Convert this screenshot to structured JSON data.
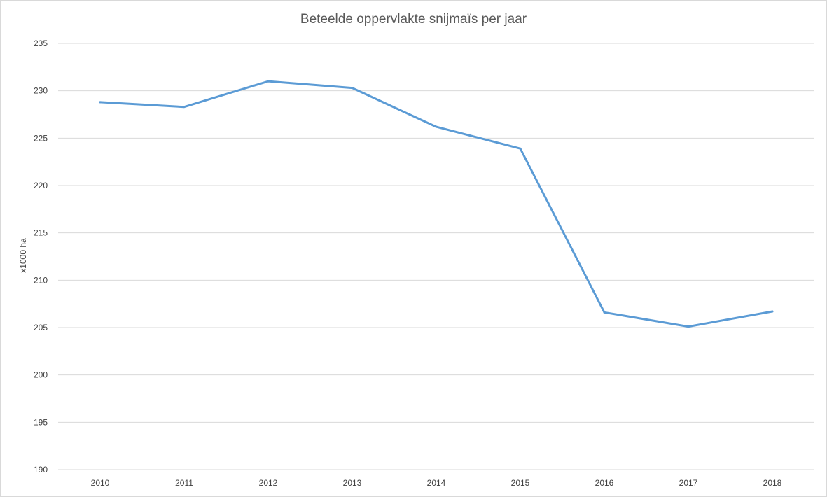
{
  "chart_data": {
    "type": "line",
    "title": "Beteelde  oppervlakte snijmaïs per jaar",
    "xlabel": "",
    "ylabel": "x1000 ha",
    "categories": [
      "2010",
      "2011",
      "2012",
      "2013",
      "2014",
      "2015",
      "2016",
      "2017",
      "2018"
    ],
    "series": [
      {
        "values": [
          228.8,
          228.3,
          231.0,
          230.3,
          226.2,
          223.9,
          206.6,
          205.1,
          206.7
        ]
      }
    ],
    "ylim": [
      190,
      235
    ],
    "yticks": [
      190,
      195,
      200,
      205,
      210,
      215,
      220,
      225,
      230,
      235
    ],
    "grid": true,
    "colors": {
      "series": "#5b9bd5",
      "grid": "#d9d9d9",
      "text": "#595959"
    }
  }
}
